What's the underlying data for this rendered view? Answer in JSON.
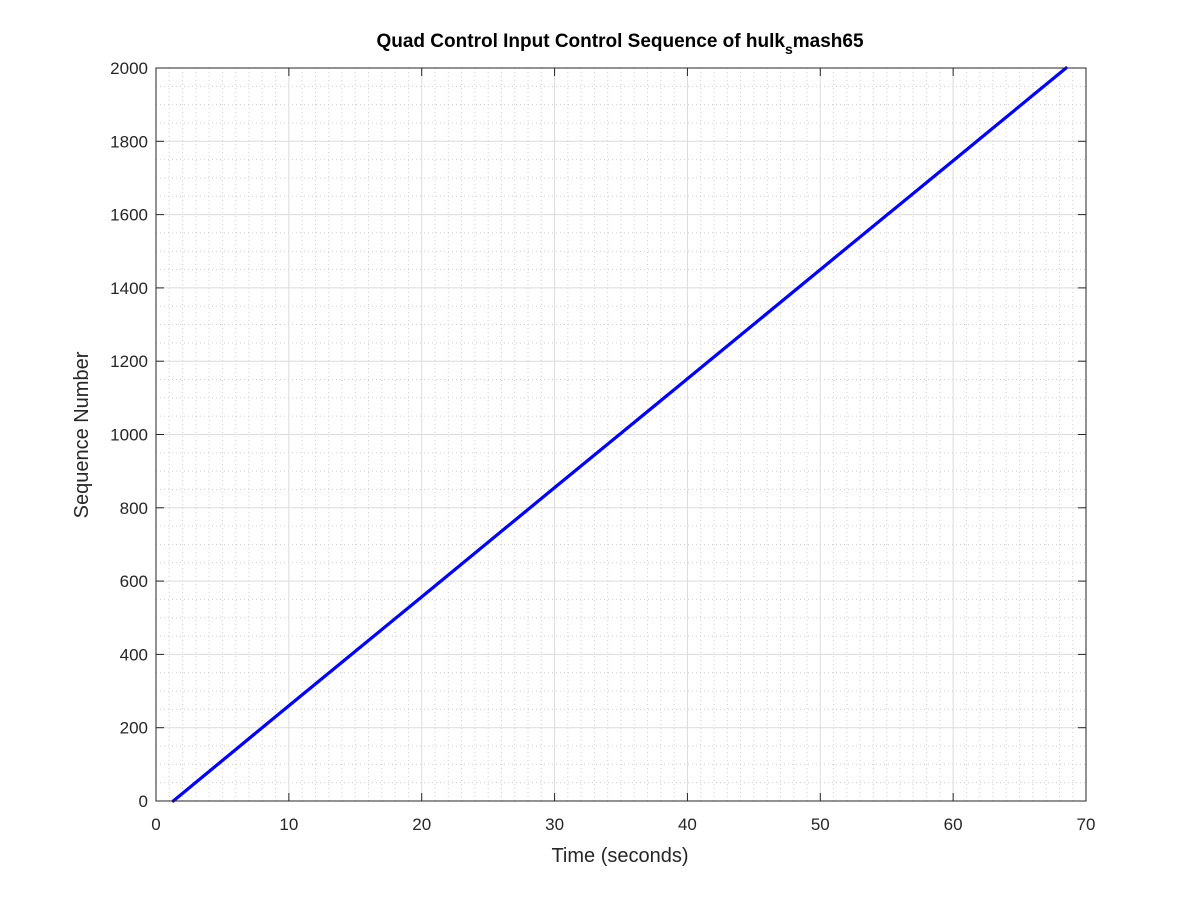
{
  "chart_data": {
    "type": "line",
    "title_main": "Quad Control Input Control Sequence of hulk",
    "title_subscript": "s",
    "title_tail": "mash65",
    "xlabel": "Time (seconds)",
    "ylabel": "Sequence Number",
    "xlim": [
      0,
      70
    ],
    "ylim": [
      0,
      2000
    ],
    "x_ticks": [
      0,
      10,
      20,
      30,
      40,
      50,
      60,
      70
    ],
    "y_ticks": [
      0,
      200,
      400,
      600,
      800,
      1000,
      1200,
      1400,
      1600,
      1800,
      2000
    ],
    "x_tick_labels": [
      "0",
      "10",
      "20",
      "30",
      "40",
      "50",
      "60",
      "70"
    ],
    "y_tick_labels": [
      "0",
      "200",
      "400",
      "600",
      "800",
      "1000",
      "1200",
      "1400",
      "1600",
      "1800",
      "2000"
    ],
    "grid": true,
    "minor_grid": true,
    "legend": "none",
    "series": [
      {
        "color": "#0000ff",
        "x": [
          1.3,
          10,
          20,
          30,
          40,
          50,
          60,
          68.5
        ],
        "y": [
          0,
          260,
          557,
          855,
          1152,
          1450,
          1747,
          2000
        ]
      }
    ]
  }
}
